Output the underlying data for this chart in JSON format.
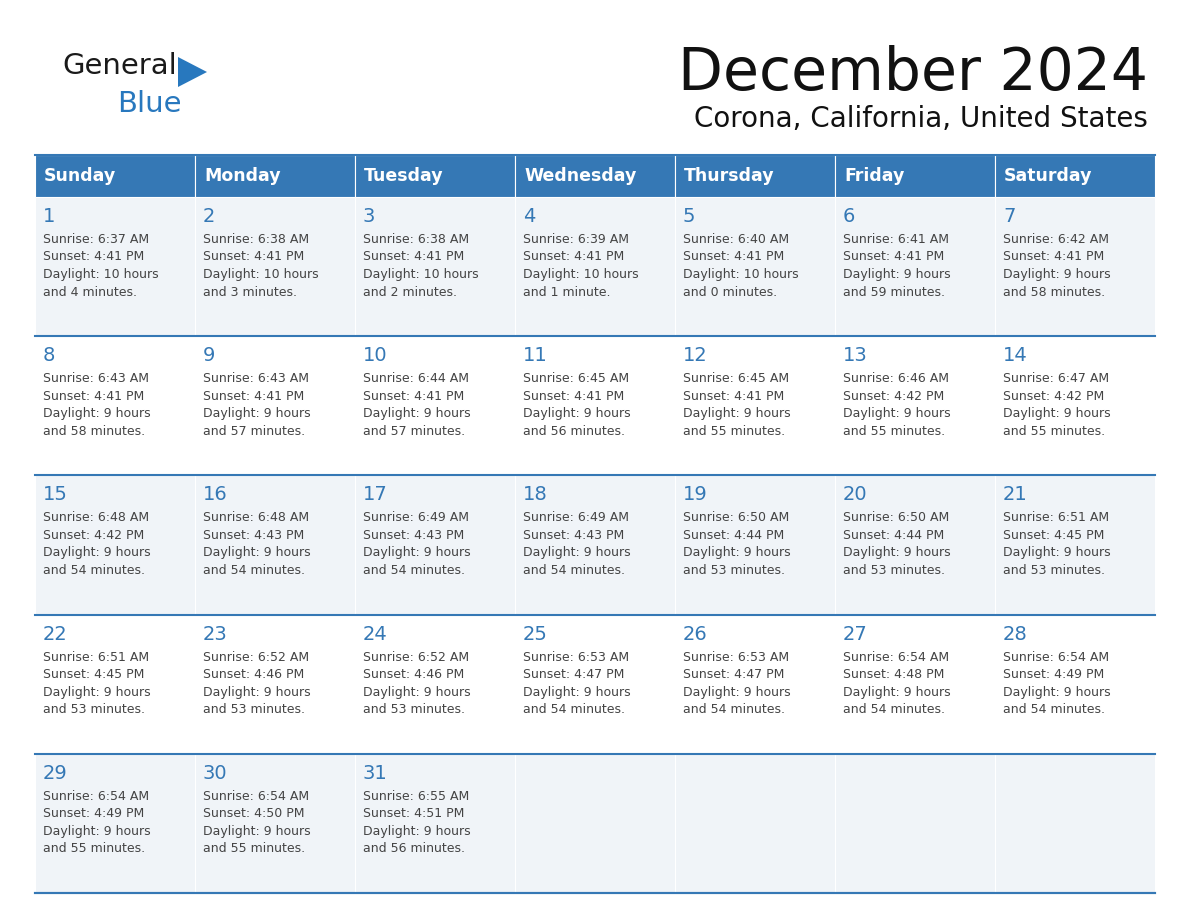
{
  "title": "December 2024",
  "subtitle": "Corona, California, United States",
  "header_bg_color": "#3578b5",
  "header_text_color": "#ffffff",
  "cell_bg_color_odd": "#f0f4f8",
  "cell_bg_color_even": "#ffffff",
  "row_line_color": "#3578b5",
  "text_color": "#444444",
  "day_number_color": "#3578b5",
  "days_of_week": [
    "Sunday",
    "Monday",
    "Tuesday",
    "Wednesday",
    "Thursday",
    "Friday",
    "Saturday"
  ],
  "calendar_data": [
    [
      {
        "day": 1,
        "sunrise": "6:37 AM",
        "sunset": "4:41 PM",
        "daylight": "10 hours and 4 minutes."
      },
      {
        "day": 2,
        "sunrise": "6:38 AM",
        "sunset": "4:41 PM",
        "daylight": "10 hours and 3 minutes."
      },
      {
        "day": 3,
        "sunrise": "6:38 AM",
        "sunset": "4:41 PM",
        "daylight": "10 hours and 2 minutes."
      },
      {
        "day": 4,
        "sunrise": "6:39 AM",
        "sunset": "4:41 PM",
        "daylight": "10 hours and 1 minute."
      },
      {
        "day": 5,
        "sunrise": "6:40 AM",
        "sunset": "4:41 PM",
        "daylight": "10 hours and 0 minutes."
      },
      {
        "day": 6,
        "sunrise": "6:41 AM",
        "sunset": "4:41 PM",
        "daylight": "9 hours and 59 minutes."
      },
      {
        "day": 7,
        "sunrise": "6:42 AM",
        "sunset": "4:41 PM",
        "daylight": "9 hours and 58 minutes."
      }
    ],
    [
      {
        "day": 8,
        "sunrise": "6:43 AM",
        "sunset": "4:41 PM",
        "daylight": "9 hours and 58 minutes."
      },
      {
        "day": 9,
        "sunrise": "6:43 AM",
        "sunset": "4:41 PM",
        "daylight": "9 hours and 57 minutes."
      },
      {
        "day": 10,
        "sunrise": "6:44 AM",
        "sunset": "4:41 PM",
        "daylight": "9 hours and 57 minutes."
      },
      {
        "day": 11,
        "sunrise": "6:45 AM",
        "sunset": "4:41 PM",
        "daylight": "9 hours and 56 minutes."
      },
      {
        "day": 12,
        "sunrise": "6:45 AM",
        "sunset": "4:41 PM",
        "daylight": "9 hours and 55 minutes."
      },
      {
        "day": 13,
        "sunrise": "6:46 AM",
        "sunset": "4:42 PM",
        "daylight": "9 hours and 55 minutes."
      },
      {
        "day": 14,
        "sunrise": "6:47 AM",
        "sunset": "4:42 PM",
        "daylight": "9 hours and 55 minutes."
      }
    ],
    [
      {
        "day": 15,
        "sunrise": "6:48 AM",
        "sunset": "4:42 PM",
        "daylight": "9 hours and 54 minutes."
      },
      {
        "day": 16,
        "sunrise": "6:48 AM",
        "sunset": "4:43 PM",
        "daylight": "9 hours and 54 minutes."
      },
      {
        "day": 17,
        "sunrise": "6:49 AM",
        "sunset": "4:43 PM",
        "daylight": "9 hours and 54 minutes."
      },
      {
        "day": 18,
        "sunrise": "6:49 AM",
        "sunset": "4:43 PM",
        "daylight": "9 hours and 54 minutes."
      },
      {
        "day": 19,
        "sunrise": "6:50 AM",
        "sunset": "4:44 PM",
        "daylight": "9 hours and 53 minutes."
      },
      {
        "day": 20,
        "sunrise": "6:50 AM",
        "sunset": "4:44 PM",
        "daylight": "9 hours and 53 minutes."
      },
      {
        "day": 21,
        "sunrise": "6:51 AM",
        "sunset": "4:45 PM",
        "daylight": "9 hours and 53 minutes."
      }
    ],
    [
      {
        "day": 22,
        "sunrise": "6:51 AM",
        "sunset": "4:45 PM",
        "daylight": "9 hours and 53 minutes."
      },
      {
        "day": 23,
        "sunrise": "6:52 AM",
        "sunset": "4:46 PM",
        "daylight": "9 hours and 53 minutes."
      },
      {
        "day": 24,
        "sunrise": "6:52 AM",
        "sunset": "4:46 PM",
        "daylight": "9 hours and 53 minutes."
      },
      {
        "day": 25,
        "sunrise": "6:53 AM",
        "sunset": "4:47 PM",
        "daylight": "9 hours and 54 minutes."
      },
      {
        "day": 26,
        "sunrise": "6:53 AM",
        "sunset": "4:47 PM",
        "daylight": "9 hours and 54 minutes."
      },
      {
        "day": 27,
        "sunrise": "6:54 AM",
        "sunset": "4:48 PM",
        "daylight": "9 hours and 54 minutes."
      },
      {
        "day": 28,
        "sunrise": "6:54 AM",
        "sunset": "4:49 PM",
        "daylight": "9 hours and 54 minutes."
      }
    ],
    [
      {
        "day": 29,
        "sunrise": "6:54 AM",
        "sunset": "4:49 PM",
        "daylight": "9 hours and 55 minutes."
      },
      {
        "day": 30,
        "sunrise": "6:54 AM",
        "sunset": "4:50 PM",
        "daylight": "9 hours and 55 minutes."
      },
      {
        "day": 31,
        "sunrise": "6:55 AM",
        "sunset": "4:51 PM",
        "daylight": "9 hours and 56 minutes."
      },
      null,
      null,
      null,
      null
    ]
  ],
  "logo_general_color": "#1a1a1a",
  "logo_blue_color": "#2878be",
  "logo_triangle_color": "#2878be"
}
